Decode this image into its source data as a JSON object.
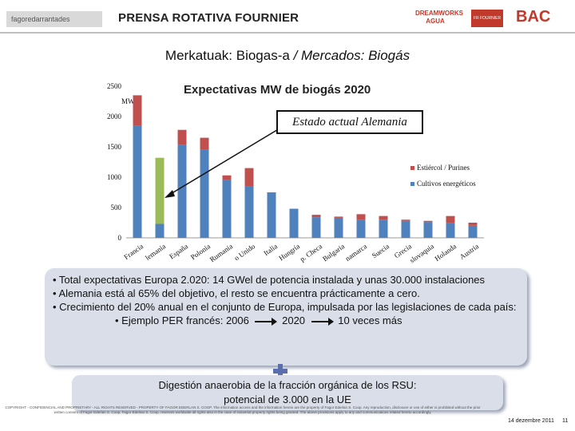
{
  "header": {
    "logo_left": "fagoredarrantades",
    "title": "PRENSA ROTATIVA FOURNIER",
    "logo_dreamworks": "DREAMWORKS AGUA",
    "logo_square": "FR FOURNIER",
    "logo_bac": "BAC"
  },
  "slide_title": {
    "main": "Merkatuak: Biogas-a",
    "italic": "/ Mercados: Biogás"
  },
  "callout": "Estado actual Alemania",
  "chart_data": {
    "type": "bar",
    "title": "Expectativas MW de biogás 2020",
    "ylabel": "MW",
    "ylim": [
      0,
      2500
    ],
    "yticks": [
      0,
      500,
      1000,
      1500,
      2000,
      2500
    ],
    "categories": [
      "Francia",
      "Alemania",
      "España",
      "Polonia",
      "Rumania",
      "Reino Unido",
      "Italia",
      "Hungría",
      "Rep. Checa",
      "Bulgaria",
      "Dinamarca",
      "Suecia",
      "Grecia",
      "Eslovaquia",
      "Holanda",
      "Austria"
    ],
    "tick_labels": [
      "Francia",
      "lemania",
      "España",
      "Polonia",
      "Rumania",
      "o Unido",
      "Italia",
      "Hungría",
      "p. Checa",
      "Bulgaria",
      "namarca",
      "Suecia",
      "Grecia",
      "slovaquia",
      "Holanda",
      "Austria"
    ],
    "series": [
      {
        "name": "Cultivos energéticos",
        "color": "#4f81bd",
        "values": [
          1850,
          230,
          1530,
          1450,
          950,
          850,
          750,
          480,
          340,
          330,
          300,
          300,
          280,
          260,
          240,
          200
        ]
      },
      {
        "name": "Estiércol / Purines",
        "color": "#c0504d",
        "values": [
          500,
          420,
          250,
          200,
          80,
          300,
          0,
          0,
          40,
          20,
          90,
          60,
          20,
          20,
          120,
          50
        ]
      }
    ],
    "germany_current": {
      "value": 1320,
      "color": "#9bbb59"
    },
    "legend_position": "right"
  },
  "info": {
    "line1": "• Total expectativas Europa 2.020: 14 GWel de potencia instalada y unas 30.000 instalaciones",
    "line2": "• Alemania está al 65% del objetivo, el resto se encuentra prácticamente a cero.",
    "line3": "• Crecimiento del 20% anual en el conjunto de Europa, impulsada por las legislaciones de cada país:",
    "example_prefix": "• Ejemplo PER francés: 2006",
    "example_year": "2020",
    "example_suffix": "10 veces más"
  },
  "rsu": {
    "line1": "Digestión anaerobia de la fracción orgánica de los RSU:",
    "line2": "potencial de 3.000 en la UE"
  },
  "footer": {
    "copyright": "COPYRIGHT - CONFIDENCIAL AND PROPRIETARY - ALL RIGHTS RESERVED - PROPERTY OF FAGOR EDERLAN S. COOP. The information access and the information herein are the property of Fagor Ederlan S. Coop. Any reproduction, disclosure or use of either is prohibited without the prior written consent of Fagor Ederlan S. Coop. Fagor Ederlan S. Coop. reserves worldwide all rights also in the case of industrial property rights being granted. The above provisions apply to any and communications related hereto accordingly.",
    "date": "14 dezembre 2011",
    "page": "11"
  }
}
